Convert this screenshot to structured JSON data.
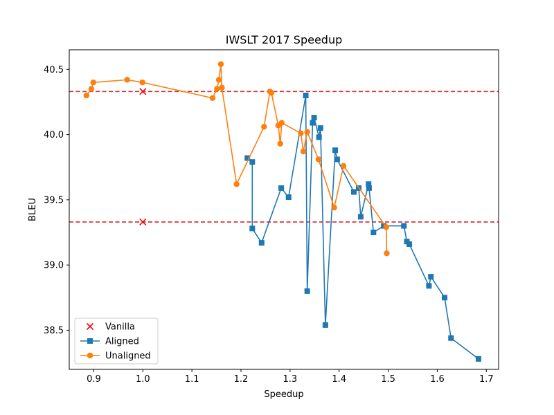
{
  "chart_data": {
    "type": "line",
    "title": "IWSLT 2017 Speedup",
    "xlabel": "Speedup",
    "ylabel": "BLEU",
    "xlim": [
      0.85,
      1.725
    ],
    "ylim": [
      38.2,
      40.65
    ],
    "xticks": [
      0.9,
      1.0,
      1.1,
      1.2,
      1.3,
      1.4,
      1.5,
      1.6,
      1.7
    ],
    "xtick_labels": [
      "0.9",
      "1.0",
      "1.1",
      "1.2",
      "1.3",
      "1.4",
      "1.5",
      "1.6",
      "1.7"
    ],
    "yticks": [
      38.5,
      39.0,
      39.5,
      40.0,
      40.5
    ],
    "ytick_labels": [
      "38.5",
      "39.0",
      "39.5",
      "40.0",
      "40.5"
    ],
    "grid": false,
    "legend_position": "lower-left",
    "hlines": [
      {
        "y": 40.33,
        "color": "#d62728",
        "style": "dashed"
      },
      {
        "y": 39.33,
        "color": "#d62728",
        "style": "dashed"
      }
    ],
    "series": [
      {
        "name": "Vanilla",
        "kind": "scatter",
        "marker": "x",
        "color": "#ff0000",
        "x": [
          1.0,
          1.0
        ],
        "y": [
          40.33,
          39.33
        ]
      },
      {
        "name": "Aligned",
        "kind": "line",
        "marker": "square",
        "color": "#1f77b4",
        "x": [
          1.213,
          1.223,
          1.223,
          1.242,
          1.282,
          1.297,
          1.332,
          1.335,
          1.346,
          1.349,
          1.359,
          1.362,
          1.372,
          1.392,
          1.396,
          1.43,
          1.44,
          1.444,
          1.46,
          1.461,
          1.47,
          1.491,
          1.532,
          1.538,
          1.543,
          1.583,
          1.587,
          1.615,
          1.628,
          1.684
        ],
        "y": [
          39.82,
          39.79,
          39.28,
          39.17,
          39.59,
          39.52,
          40.3,
          38.8,
          40.09,
          40.13,
          39.98,
          40.05,
          38.54,
          39.88,
          39.81,
          39.56,
          39.59,
          39.37,
          39.62,
          39.59,
          39.25,
          39.3,
          39.3,
          39.18,
          39.16,
          38.84,
          38.91,
          38.75,
          38.44,
          38.28
        ]
      },
      {
        "name": "Unaligned",
        "kind": "line",
        "marker": "circle",
        "color": "#ff7f0e",
        "x": [
          0.885,
          0.895,
          0.899,
          0.968,
          0.999,
          1.142,
          1.151,
          1.155,
          1.159,
          1.161,
          1.191,
          1.247,
          1.259,
          1.262,
          1.276,
          1.28,
          1.283,
          1.322,
          1.327,
          1.335,
          1.358,
          1.39,
          1.409,
          1.496,
          1.497
        ],
        "y": [
          40.3,
          40.35,
          40.4,
          40.42,
          40.4,
          40.28,
          40.35,
          40.42,
          40.54,
          40.36,
          39.62,
          40.06,
          40.33,
          40.32,
          40.07,
          39.93,
          40.09,
          40.01,
          39.87,
          40.02,
          39.81,
          39.44,
          39.76,
          39.29,
          39.09
        ]
      }
    ]
  }
}
